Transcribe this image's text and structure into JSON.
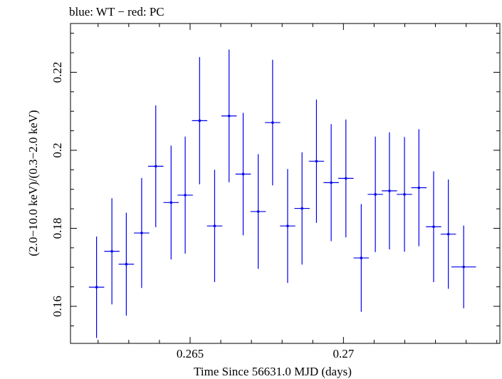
{
  "title": "blue: WT − red: PC",
  "colors": {
    "wt": "#0000ee",
    "axis": "#000000"
  },
  "chart_data": {
    "type": "scatter",
    "title": "blue: WT − red: PC",
    "xlabel": "Time Since 56631.0 MJD (days)",
    "ylabel": "(2.0−10.0 keV)/(0.3−2.0 keV)",
    "xlim": [
      0.2611,
      0.2751
    ],
    "ylim": [
      0.1505,
      0.2325
    ],
    "x_ticks_major": [
      0.265,
      0.27
    ],
    "x_ticks_minor": [
      0.262,
      0.263,
      0.264,
      0.266,
      0.267,
      0.268,
      0.269,
      0.271,
      0.272,
      0.273,
      0.274,
      0.275
    ],
    "x_tick_labels": [
      "0.265",
      "0.27"
    ],
    "y_ticks_major": [
      0.16,
      0.18,
      0.2,
      0.22
    ],
    "y_ticks_minor": [
      0.155,
      0.165,
      0.17,
      0.175,
      0.185,
      0.19,
      0.195,
      0.205,
      0.21,
      0.215,
      0.225,
      0.23
    ],
    "y_tick_labels": [
      "0.16",
      "0.18",
      "0.2",
      "0.22"
    ],
    "grid": false,
    "series": [
      {
        "color": "#0000ee",
        "points": [
          {
            "x": 0.26195,
            "y": 0.1649,
            "xerr": 0.00025,
            "yerr": 0.013
          },
          {
            "x": 0.26245,
            "y": 0.1741,
            "xerr": 0.00025,
            "yerr": 0.0136
          },
          {
            "x": 0.26292,
            "y": 0.1708,
            "xerr": 0.00025,
            "yerr": 0.0132
          },
          {
            "x": 0.26342,
            "y": 0.1788,
            "xerr": 0.00025,
            "yerr": 0.0141
          },
          {
            "x": 0.26388,
            "y": 0.1959,
            "xerr": 0.00025,
            "yerr": 0.0156
          },
          {
            "x": 0.26438,
            "y": 0.1866,
            "xerr": 0.00025,
            "yerr": 0.0146
          },
          {
            "x": 0.26484,
            "y": 0.1885,
            "xerr": 0.00025,
            "yerr": 0.015
          },
          {
            "x": 0.26531,
            "y": 0.2076,
            "xerr": 0.00025,
            "yerr": 0.0163
          },
          {
            "x": 0.2658,
            "y": 0.1806,
            "xerr": 0.00025,
            "yerr": 0.0144
          },
          {
            "x": 0.26627,
            "y": 0.2088,
            "xerr": 0.00025,
            "yerr": 0.017
          },
          {
            "x": 0.26673,
            "y": 0.1939,
            "xerr": 0.00025,
            "yerr": 0.0157
          },
          {
            "x": 0.26722,
            "y": 0.1843,
            "xerr": 0.00025,
            "yerr": 0.0147
          },
          {
            "x": 0.26769,
            "y": 0.2071,
            "xerr": 0.00025,
            "yerr": 0.0161
          },
          {
            "x": 0.26818,
            "y": 0.1806,
            "xerr": 0.00025,
            "yerr": 0.0146
          },
          {
            "x": 0.26865,
            "y": 0.1851,
            "xerr": 0.00025,
            "yerr": 0.0144
          },
          {
            "x": 0.26912,
            "y": 0.1972,
            "xerr": 0.00025,
            "yerr": 0.0158
          },
          {
            "x": 0.2696,
            "y": 0.1917,
            "xerr": 0.00025,
            "yerr": 0.015
          },
          {
            "x": 0.27008,
            "y": 0.1928,
            "xerr": 0.00025,
            "yerr": 0.0151
          },
          {
            "x": 0.27058,
            "y": 0.1724,
            "xerr": 0.00025,
            "yerr": 0.0138
          },
          {
            "x": 0.27104,
            "y": 0.1887,
            "xerr": 0.00025,
            "yerr": 0.0148
          },
          {
            "x": 0.2715,
            "y": 0.1896,
            "xerr": 0.00025,
            "yerr": 0.015
          },
          {
            "x": 0.27199,
            "y": 0.1887,
            "xerr": 0.00025,
            "yerr": 0.0147
          },
          {
            "x": 0.27246,
            "y": 0.1904,
            "xerr": 0.00025,
            "yerr": 0.015
          },
          {
            "x": 0.27294,
            "y": 0.1804,
            "xerr": 0.00025,
            "yerr": 0.0142
          },
          {
            "x": 0.27342,
            "y": 0.1785,
            "xerr": 0.00025,
            "yerr": 0.014
          },
          {
            "x": 0.27392,
            "y": 0.1701,
            "xerr": 0.0004,
            "yerr": 0.0106
          }
        ]
      }
    ]
  }
}
